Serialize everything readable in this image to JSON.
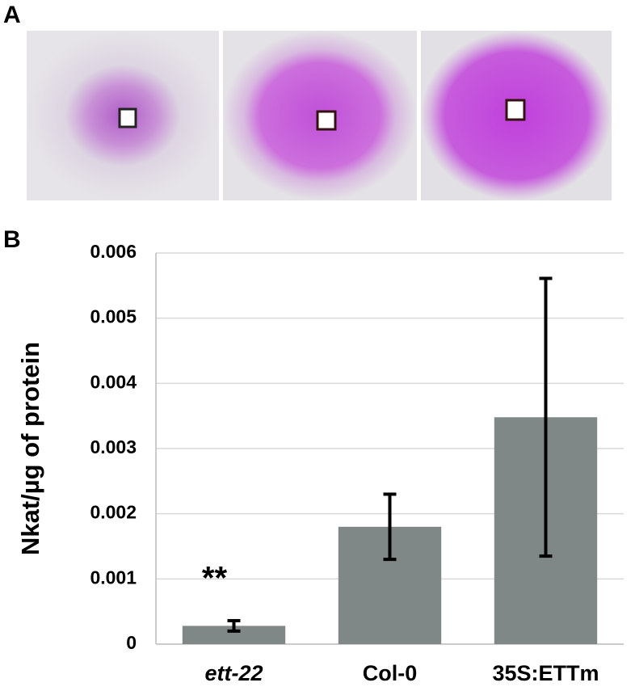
{
  "panel_labels": [
    "A",
    "B"
  ],
  "chart_data": {
    "type": "bar",
    "ylabel": "Nkat/µg of protein",
    "categories": [
      "ett-22",
      "Col-0",
      "35S:ETTm"
    ],
    "values": [
      0.00028,
      0.0018,
      0.00348
    ],
    "errors": [
      8e-05,
      0.0005,
      0.00213
    ],
    "color": "#7f8886",
    "annotations": [
      {
        "text": "**",
        "category": 0
      }
    ],
    "ylim": [
      0,
      0.006
    ],
    "yticks": [
      0,
      0.001,
      0.002,
      0.003,
      0.004,
      0.005,
      0.006
    ],
    "grid": true
  }
}
